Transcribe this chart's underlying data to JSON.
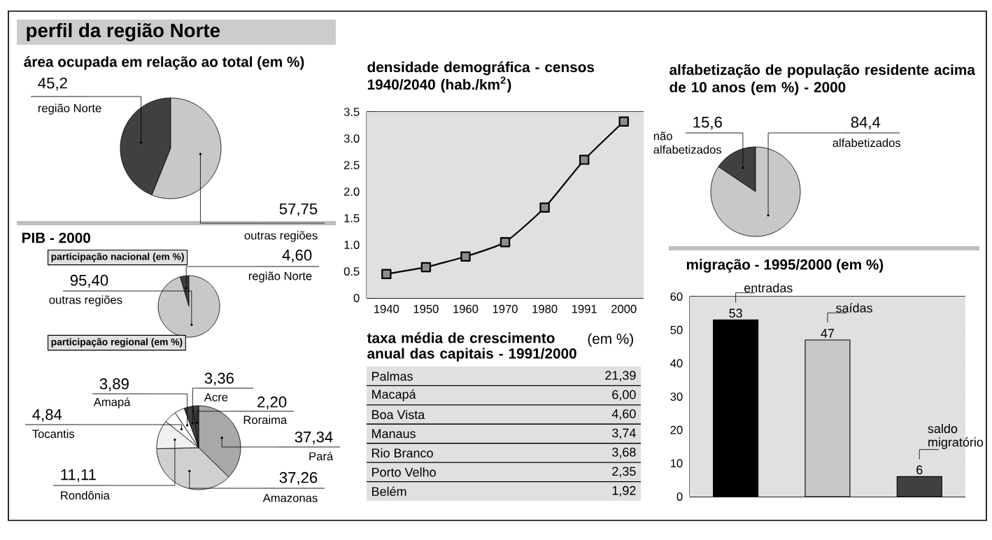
{
  "chart_data": [
    {
      "type": "pie",
      "title": "perfil da região Norte",
      "subtitle": "área ocupada em relação ao total (em %)",
      "categories": [
        "região Norte",
        "outras regiões"
      ],
      "values": [
        45.2,
        57.75
      ],
      "value_labels": [
        "45,2",
        "57,75"
      ],
      "colors": [
        "#404040",
        "#c8c8c8"
      ]
    },
    {
      "type": "pie",
      "title": "PIB - 2000",
      "subtitle": "participação nacional (em %)",
      "categories": [
        "região Norte",
        "outras regiões"
      ],
      "values": [
        4.6,
        95.4
      ],
      "value_labels": [
        "4,60",
        "95,40"
      ],
      "colors": [
        "#404040",
        "#c8c8c8"
      ]
    },
    {
      "type": "pie",
      "subtitle": "participação regional (em %)",
      "categories": [
        "Pará",
        "Amazonas",
        "Rondônia",
        "Tocantis",
        "Amapá",
        "Acre",
        "Roraima"
      ],
      "values": [
        37.34,
        37.26,
        11.11,
        4.84,
        3.89,
        3.36,
        2.2
      ],
      "value_labels": [
        "37,34",
        "37,26",
        "11,11",
        "4,84",
        "3,89",
        "3,36",
        "2,20"
      ],
      "colors": [
        "#a8a8a8",
        "#d0d0d0",
        "#f0f0f0",
        "#ffffff",
        "#ffffff",
        "#404040",
        "#404040"
      ]
    },
    {
      "type": "line",
      "title": "densidade demográfica - censos 1940/2040 (hab./km$^{2}$)",
      "categories": [
        "1940",
        "1950",
        "1960",
        "1970",
        "1980",
        "1991",
        "2000"
      ],
      "series": [
        {
          "color": "#000000",
          "values": [
            0.45,
            0.58,
            0.78,
            1.05,
            1.7,
            2.6,
            3.32
          ]
        }
      ],
      "ylim": [
        0,
        3.5
      ],
      "yticks": [
        0,
        0.5,
        {
          "value": 1,
          "label": "1.0"
        },
        1.5,
        {
          "value": 2,
          "label": "2.0"
        },
        2.5,
        {
          "value": 3,
          "label": "3.0"
        },
        3.5
      ],
      "grid": true,
      "marker": "square"
    },
    {
      "type": "other",
      "title": "taxa média de crescimento anual das capitais - 1991/2000",
      "subtitle": "(em %)",
      "categories": [
        "Palmas",
        "Macapá",
        "Boa Vista",
        "Manaus",
        "Rio Branco",
        "Porto Velho",
        "Belém"
      ],
      "values": [
        21.39,
        6,
        4.6,
        3.74,
        3.68,
        2.35,
        1.92
      ],
      "value_labels": [
        "21,39",
        "6,00",
        "4,60",
        "3,74",
        "3,68",
        "2,35",
        "1,92"
      ]
    },
    {
      "type": "pie",
      "title": "alfabetização de população residente acima de 10 anos (em %) - 2000",
      "categories": [
        "não alfabetizados",
        "alfabetizados"
      ],
      "values": [
        15.6,
        84.4
      ],
      "value_labels": [
        "15,6",
        "84,4"
      ],
      "colors": [
        "#404040",
        "#c8c8c8"
      ]
    },
    {
      "type": "bar",
      "title": "migração - 1995/2000 (em %)",
      "categories": [
        "entradas",
        "saídas",
        "saldo migratório"
      ],
      "values": [
        53,
        47,
        6
      ],
      "colors": [
        "#000000",
        "#c8c8c8",
        "#404040"
      ],
      "data_labels": true,
      "ylim": [
        0,
        60
      ],
      "yticks": [
        0,
        10,
        20,
        30,
        40,
        50,
        60
      ],
      "grid": "y",
      "tick_labels": "y"
    }
  ]
}
